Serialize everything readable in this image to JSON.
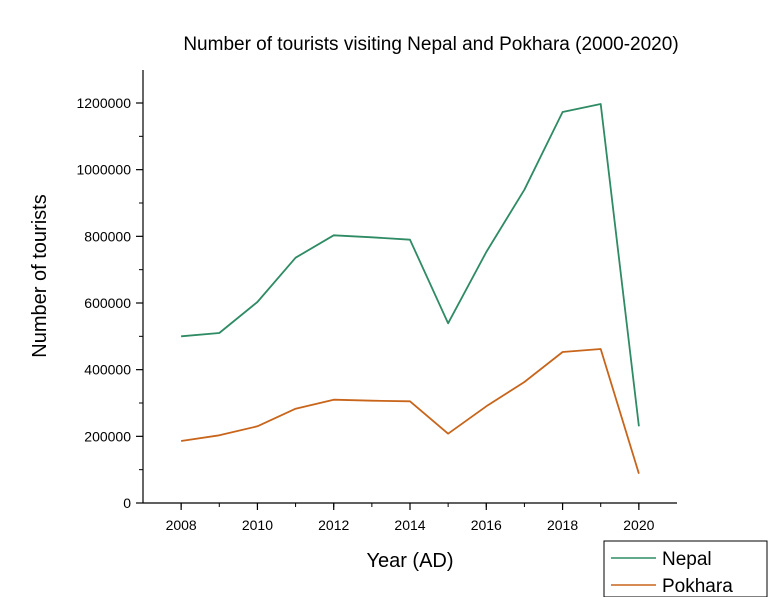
{
  "chart_data": {
    "type": "line",
    "title": "Number of tourists visiting Nepal and Pokhara (2000-2020)",
    "xlabel": "Year (AD)",
    "ylabel": "Number of tourists",
    "x": [
      2008,
      2009,
      2010,
      2011,
      2012,
      2013,
      2014,
      2015,
      2016,
      2017,
      2018,
      2019,
      2020
    ],
    "xlim": [
      2007,
      2021
    ],
    "ylim": [
      0,
      1200000
    ],
    "x_ticks": [
      "2008",
      "2010",
      "2012",
      "2014",
      "2016",
      "2018",
      "2020"
    ],
    "y_ticks": [
      "0",
      "200000",
      "400000",
      "600000",
      "800000",
      "1000000",
      "1200000"
    ],
    "grid": false,
    "legend_position": "bottom-right",
    "series": [
      {
        "name": "Nepal",
        "color": "#2e8b64",
        "values": [
          500000,
          510000,
          603000,
          736000,
          803000,
          797000,
          790000,
          539000,
          753000,
          940000,
          1173000,
          1197000,
          230000
        ]
      },
      {
        "name": "Pokhara",
        "color": "#c8651b",
        "values": [
          186000,
          203000,
          230000,
          283000,
          310000,
          307000,
          305000,
          208000,
          290000,
          363000,
          453000,
          462000,
          88000
        ]
      }
    ]
  }
}
